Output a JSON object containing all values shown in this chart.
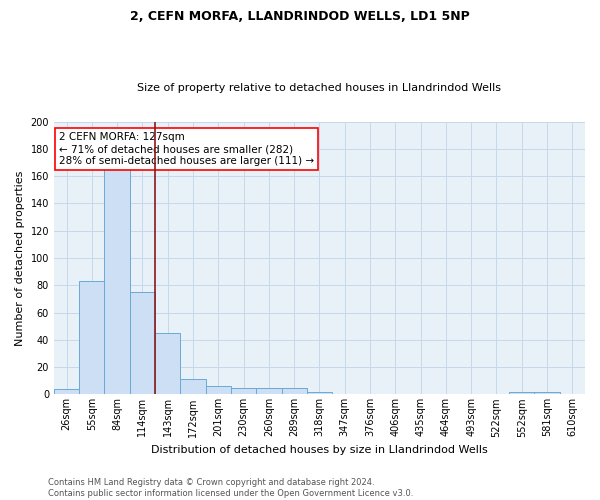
{
  "title1": "2, CEFN MORFA, LLANDRINDOD WELLS, LD1 5NP",
  "title2": "Size of property relative to detached houses in Llandrindod Wells",
  "xlabel": "Distribution of detached houses by size in Llandrindod Wells",
  "ylabel": "Number of detached properties",
  "annotation_line1": "2 CEFN MORFA: 127sqm",
  "annotation_line2": "← 71% of detached houses are smaller (282)",
  "annotation_line3": "28% of semi-detached houses are larger (111) →",
  "footer1": "Contains HM Land Registry data © Crown copyright and database right 2024.",
  "footer2": "Contains public sector information licensed under the Open Government Licence v3.0.",
  "bar_labels": [
    "26sqm",
    "55sqm",
    "84sqm",
    "114sqm",
    "143sqm",
    "172sqm",
    "201sqm",
    "230sqm",
    "260sqm",
    "289sqm",
    "318sqm",
    "347sqm",
    "376sqm",
    "406sqm",
    "435sqm",
    "464sqm",
    "493sqm",
    "522sqm",
    "552sqm",
    "581sqm",
    "610sqm"
  ],
  "bar_values": [
    4,
    83,
    165,
    75,
    45,
    11,
    6,
    5,
    5,
    5,
    2,
    0,
    0,
    0,
    0,
    0,
    0,
    0,
    2,
    2,
    0
  ],
  "bar_color": "#ccdff5",
  "bar_edge_color": "#6aaad4",
  "vline_x": 3.5,
  "vline_color": "#8b1a1a",
  "grid_color": "#c8d8eb",
  "background_color": "#e8f0f8",
  "ylim": [
    0,
    200
  ],
  "yticks": [
    0,
    20,
    40,
    60,
    80,
    100,
    120,
    140,
    160,
    180,
    200
  ],
  "title1_fontsize": 9,
  "title2_fontsize": 8,
  "ylabel_fontsize": 8,
  "xlabel_fontsize": 8,
  "tick_fontsize": 7,
  "footer_fontsize": 6,
  "ann_fontsize": 7.5
}
